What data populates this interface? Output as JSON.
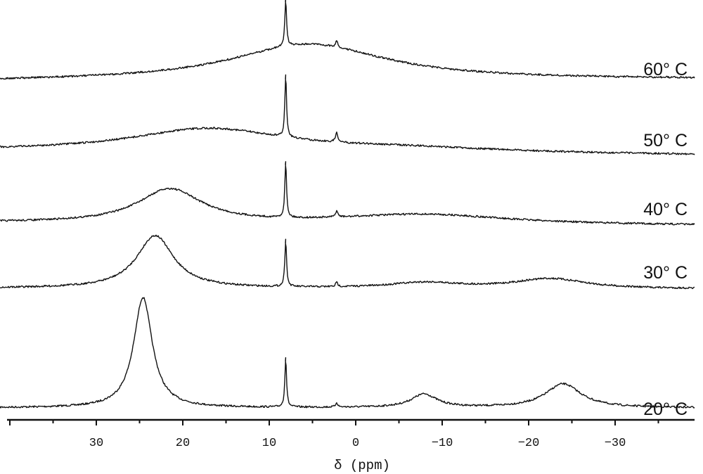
{
  "chart_data": {
    "type": "line",
    "title": "",
    "xlabel": "δ (ppm)",
    "ylabel": "",
    "xlim": [
      40,
      -39
    ],
    "x_reversed": true,
    "x_ticks": [
      30,
      20,
      10,
      0,
      -10,
      -20,
      -30
    ],
    "x_tick_labels": [
      "30",
      "20",
      "10",
      "0",
      "−10",
      "−20",
      "−30"
    ],
    "grid": false,
    "stacked": true,
    "line_color": "#111111",
    "series": [
      {
        "name": "20° C",
        "peaks": [
          {
            "center": 24.6,
            "height": 157,
            "hwhm": 1.3
          },
          {
            "center": 8.1,
            "height": 70,
            "hwhm": 0.12
          },
          {
            "center": 2.2,
            "height": 6,
            "hwhm": 0.15
          },
          {
            "center": -7.9,
            "height": 19,
            "hwhm": 1.8
          },
          {
            "center": -24.0,
            "height": 34,
            "hwhm": 2.5
          }
        ]
      },
      {
        "name": "30° C",
        "peaks": [
          {
            "center": 23.2,
            "height": 75,
            "hwhm": 2.6
          },
          {
            "center": 8.1,
            "height": 67,
            "hwhm": 0.12
          },
          {
            "center": 2.2,
            "height": 6,
            "hwhm": 0.15
          },
          {
            "center": -8.0,
            "height": 8,
            "hwhm": 5
          },
          {
            "center": -22.5,
            "height": 14,
            "hwhm": 5
          }
        ]
      },
      {
        "name": "40° C",
        "peaks": [
          {
            "center": 21.5,
            "height": 48,
            "hwhm": 4.5
          },
          {
            "center": 8.1,
            "height": 79,
            "hwhm": 0.12
          },
          {
            "center": 2.2,
            "height": 9,
            "hwhm": 0.15
          },
          {
            "center": -8.0,
            "height": 14,
            "hwhm": 12
          }
        ]
      },
      {
        "name": "50° C",
        "peaks": [
          {
            "center": 17.0,
            "height": 33,
            "hwhm": 11
          },
          {
            "center": 8.1,
            "height": 88,
            "hwhm": 0.12
          },
          {
            "center": 2.2,
            "height": 14,
            "hwhm": 0.15
          },
          {
            "center": -6.0,
            "height": 6,
            "hwhm": 14
          }
        ]
      },
      {
        "name": "60° C",
        "peaks": [
          {
            "center": 5.5,
            "height": 52,
            "hwhm": 11
          },
          {
            "center": 8.1,
            "height": 67,
            "hwhm": 0.12
          },
          {
            "center": 2.2,
            "height": 9,
            "hwhm": 0.15
          }
        ]
      }
    ]
  }
}
